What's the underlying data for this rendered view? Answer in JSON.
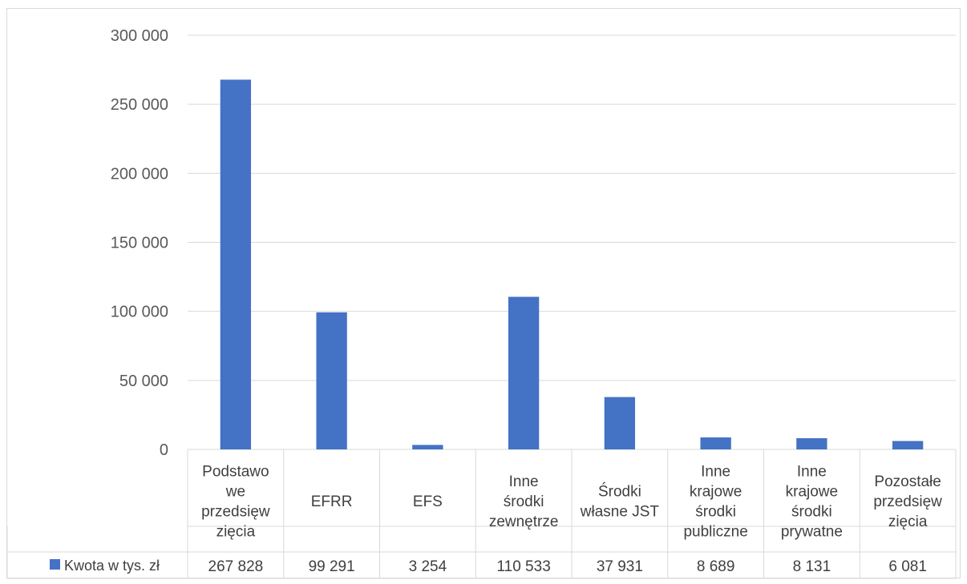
{
  "chart_data": {
    "type": "bar",
    "categories": [
      "Podstawowe przedsięwzięcia",
      "EFRR",
      "EFS",
      "Inne środki zewnętrze",
      "Środki własne JST",
      "Inne krajowe środki publiczne",
      "Inne krajowe środki prywatne",
      "Pozostałe przedsięwzięcia"
    ],
    "category_lines": [
      [
        "Podstawo",
        "we",
        "przedsięw",
        "zięcia"
      ],
      [
        "EFRR"
      ],
      [
        "EFS"
      ],
      [
        "Inne",
        "środki",
        "zewnętrze"
      ],
      [
        "Środki",
        "własne JST"
      ],
      [
        "Inne",
        "krajowe",
        "środki",
        "publiczne"
      ],
      [
        "Inne",
        "krajowe",
        "środki",
        "prywatne"
      ],
      [
        "Pozostałe",
        "przedsięw",
        "zięcia"
      ]
    ],
    "series": [
      {
        "name": "Kwota w tys. zł",
        "values": [
          267828,
          99291,
          3254,
          110533,
          37931,
          8689,
          8131,
          6081
        ],
        "display_values": [
          "267 828",
          "99 291",
          "3 254",
          "110 533",
          "37 931",
          "8 689",
          "8 131",
          "6 081"
        ],
        "color": "#4472c4"
      }
    ],
    "ylim": [
      0,
      300000
    ],
    "yticks": [
      0,
      50000,
      100000,
      150000,
      200000,
      250000,
      300000
    ],
    "ytick_labels": [
      "0",
      "50 000",
      "100 000",
      "150 000",
      "200 000",
      "250 000",
      "300 000"
    ],
    "title": "",
    "xlabel": "",
    "ylabel": "",
    "grid": true,
    "legend": "data-table",
    "gridline_color": "#d9d9d9",
    "text_color": "#404040"
  }
}
